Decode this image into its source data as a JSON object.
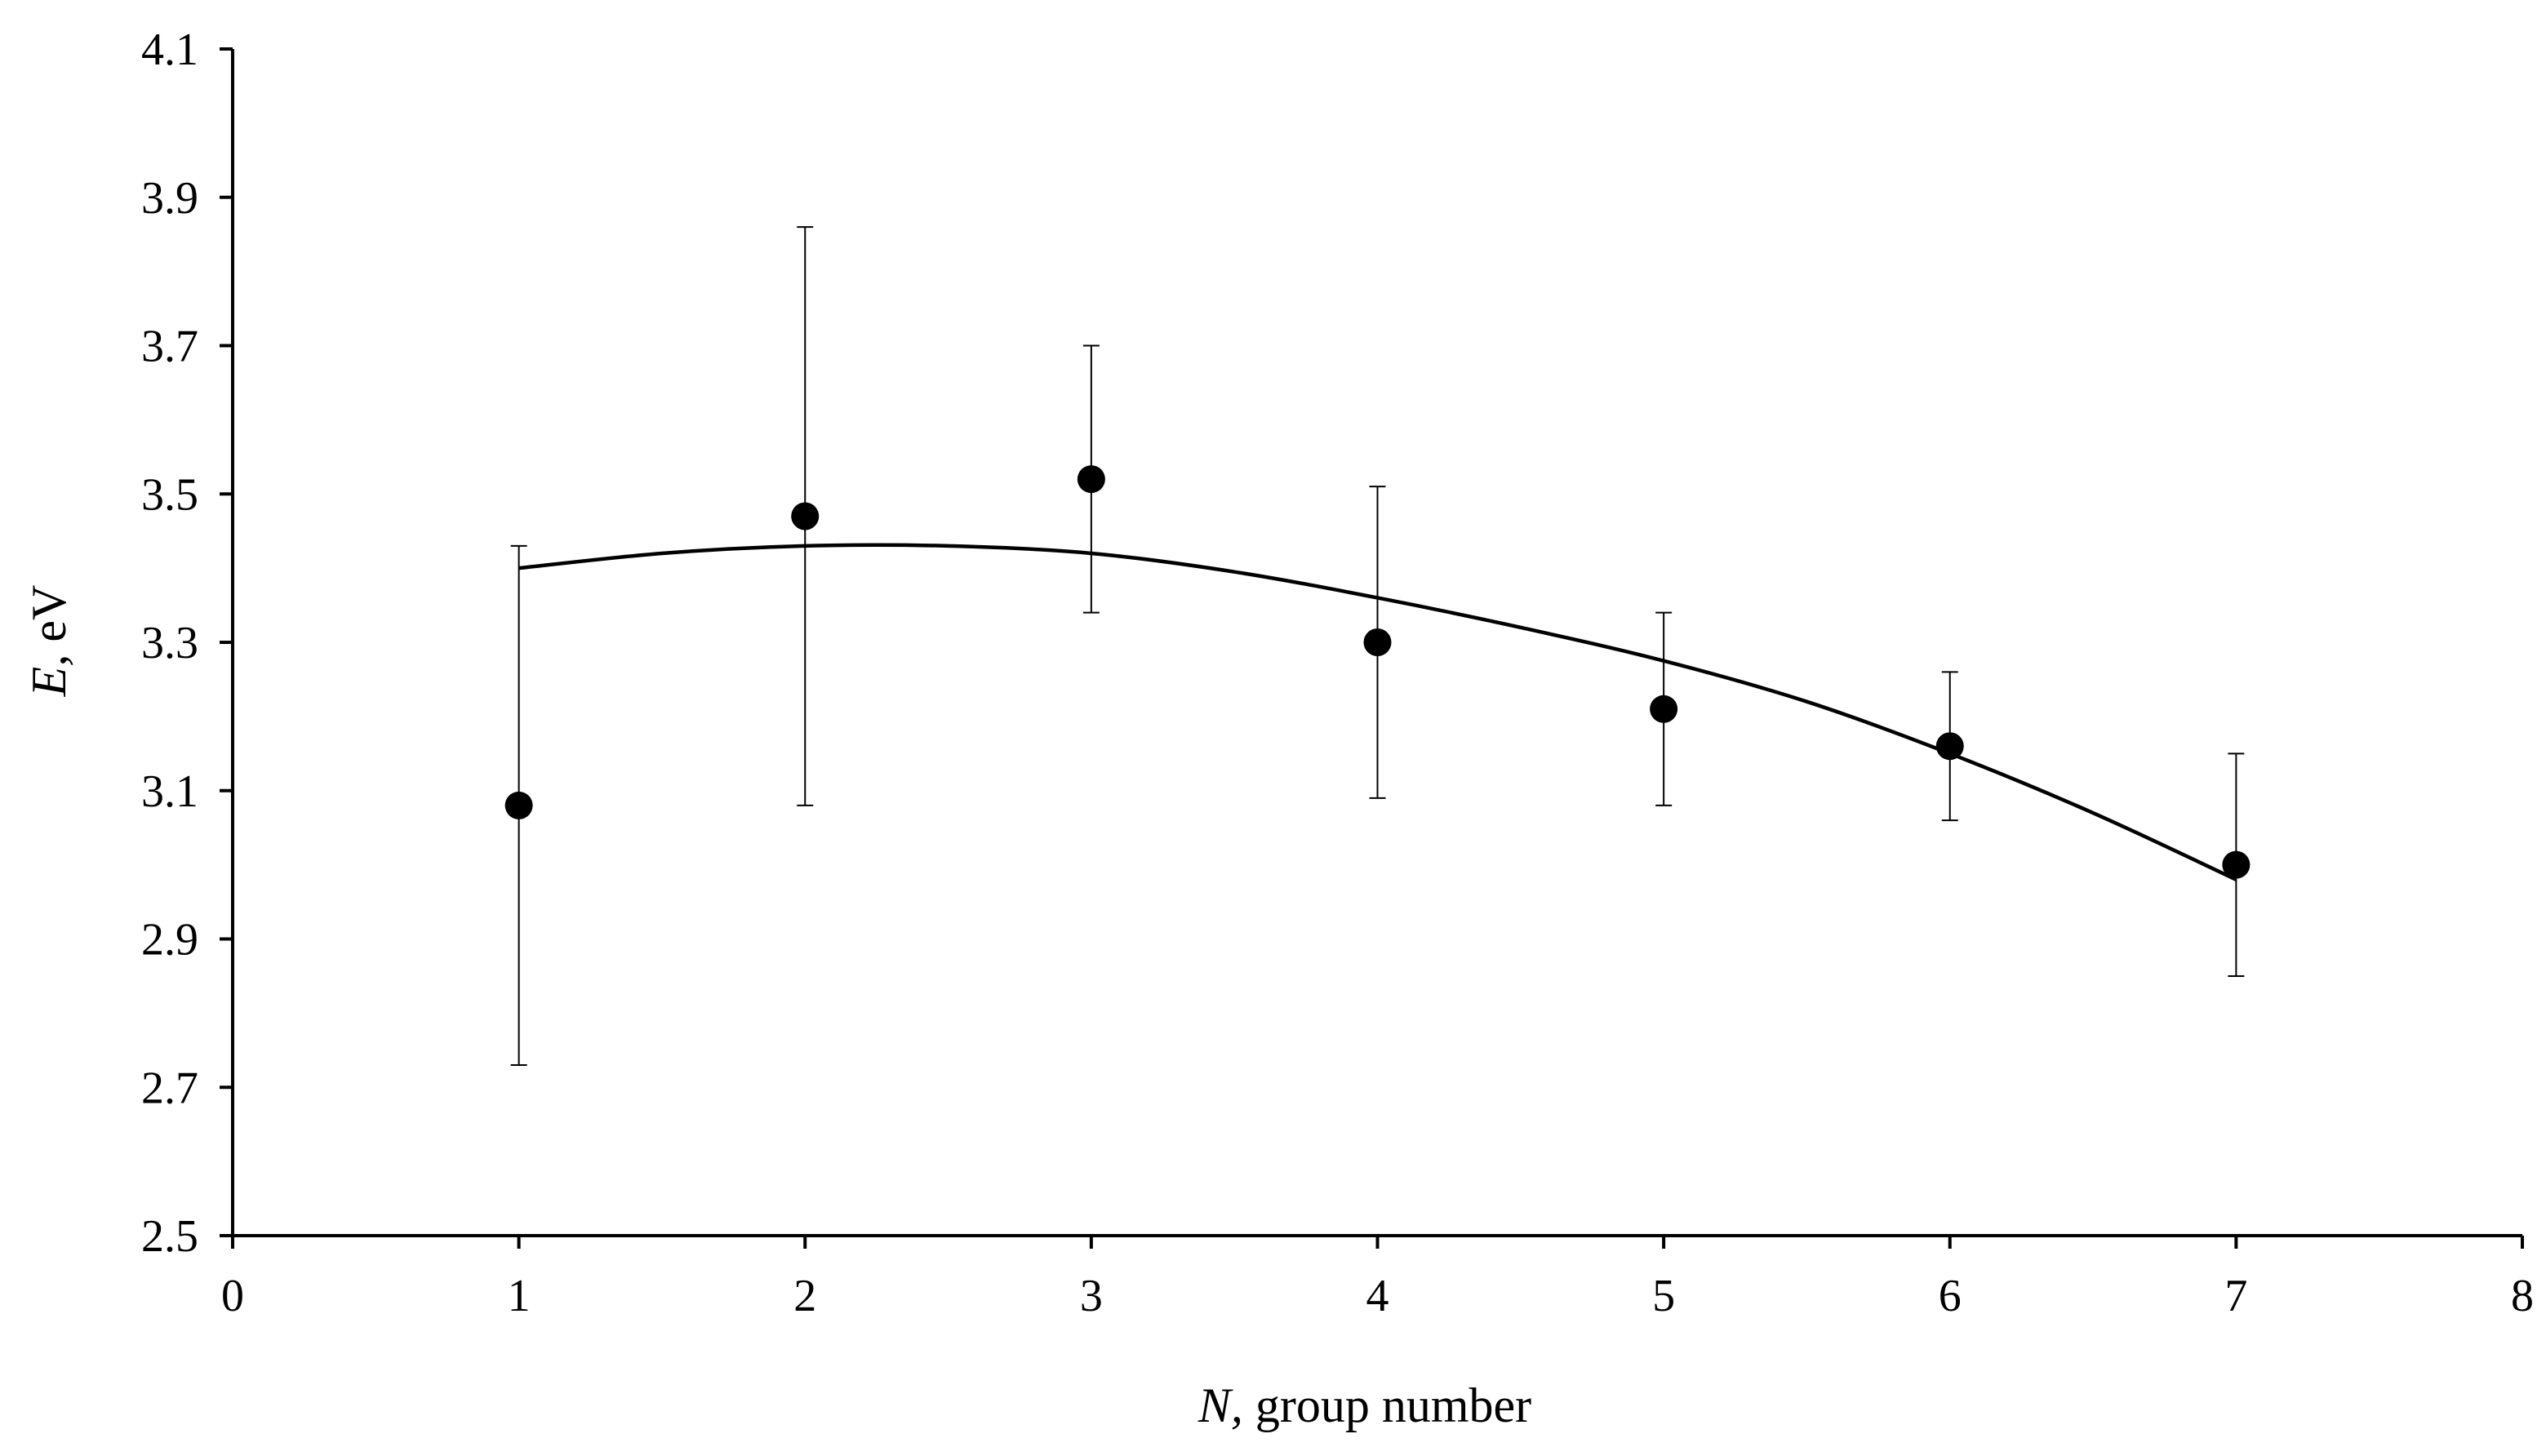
{
  "chart_data": {
    "type": "scatter",
    "title": "",
    "xlabel_var": "N,",
    "xlabel_rest": " group number",
    "ylabel_var": "E,",
    "ylabel_rest": " eV",
    "xlim": [
      0,
      8
    ],
    "ylim": [
      2.5,
      4.1
    ],
    "x_ticks": [
      "0",
      "1",
      "2",
      "3",
      "4",
      "5",
      "6",
      "7",
      "8"
    ],
    "y_ticks": [
      "2.5",
      "2.7",
      "2.9",
      "3.1",
      "3.3",
      "3.5",
      "3.7",
      "3.9",
      "4.1"
    ],
    "grid": false,
    "legend": "none",
    "marker_color": "#000000",
    "points": [
      {
        "x": 1,
        "y": 3.08,
        "err_low": 2.73,
        "err_high": 3.43
      },
      {
        "x": 2,
        "y": 3.47,
        "err_low": 3.08,
        "err_high": 3.86
      },
      {
        "x": 3,
        "y": 3.52,
        "err_low": 3.34,
        "err_high": 3.7
      },
      {
        "x": 4,
        "y": 3.3,
        "err_low": 3.09,
        "err_high": 3.51
      },
      {
        "x": 5,
        "y": 3.21,
        "err_low": 3.08,
        "err_high": 3.34
      },
      {
        "x": 6,
        "y": 3.16,
        "err_low": 3.06,
        "err_high": 3.26
      },
      {
        "x": 7,
        "y": 3.0,
        "err_low": 2.85,
        "err_high": 3.15
      }
    ],
    "trendline": {
      "type": "polynomial",
      "x": [
        1,
        1.5,
        2,
        2.5,
        3,
        3.5,
        4,
        4.5,
        5,
        5.5,
        6,
        6.5,
        7
      ],
      "y": [
        3.4,
        3.42,
        3.43,
        3.43,
        3.42,
        3.395,
        3.36,
        3.32,
        3.275,
        3.22,
        3.15,
        3.07,
        2.98
      ]
    }
  }
}
